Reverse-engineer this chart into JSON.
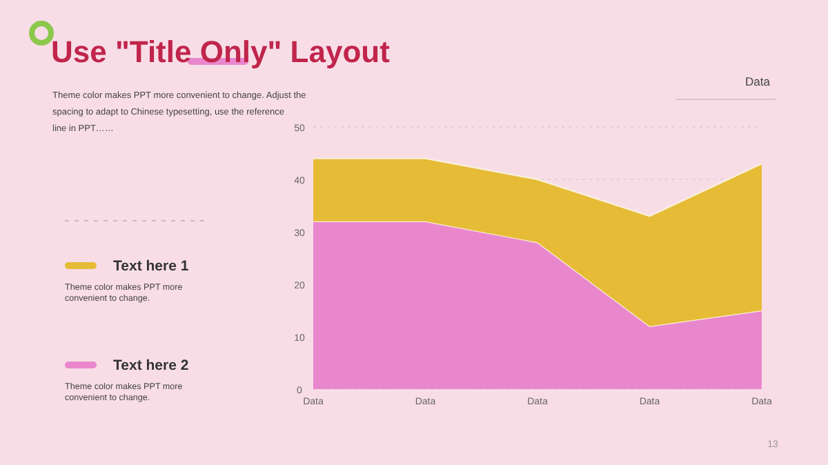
{
  "chart_data": {
    "type": "area",
    "title": "Use \"Title Only\" Layout",
    "stacked": true,
    "categories": [
      "Data",
      "Data",
      "Data",
      "Data",
      "Data"
    ],
    "series": [
      {
        "name": "Text here 2",
        "color": "#e987cd",
        "values": [
          32,
          32,
          28,
          12,
          15
        ]
      },
      {
        "name": "Text here 1",
        "color": "#e6bb36",
        "values": [
          12,
          12,
          12,
          21,
          28
        ]
      }
    ],
    "ylim": [
      0,
      50
    ],
    "yticks": [
      0,
      10,
      20,
      30,
      40,
      50
    ],
    "grid": "y",
    "legend": "left",
    "annotations": [
      "Theme color makes PPT more convenient to change. Adjust the spacing to adapt to Chinese typesetting, use the reference line in PPT……",
      "Theme color makes PPT more convenient to change.",
      "Theme color makes PPT more convenient to change.",
      "Data",
      "13"
    ]
  }
}
